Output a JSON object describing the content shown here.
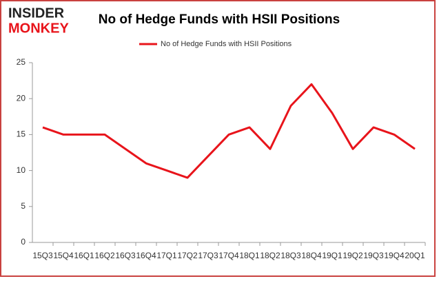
{
  "logo": {
    "top": "INSIDER",
    "bottom": "MONKEY"
  },
  "chart_data": {
    "type": "line",
    "title": "No of Hedge Funds with HSII Positions",
    "categories": [
      "15Q3",
      "15Q4",
      "16Q1",
      "16Q2",
      "16Q3",
      "16Q4",
      "17Q1",
      "17Q2",
      "17Q3",
      "17Q4",
      "18Q1",
      "18Q2",
      "18Q3",
      "18Q4",
      "19Q1",
      "19Q2",
      "19Q3",
      "19Q4",
      "20Q1"
    ],
    "series": [
      {
        "name": "No of Hedge Funds with HSII Positions",
        "color": "#e8141b",
        "values": [
          16,
          15,
          15,
          15,
          13,
          11,
          10,
          9,
          12,
          15,
          16,
          13,
          19,
          22,
          18,
          13,
          16,
          15,
          13
        ]
      }
    ],
    "ylim": [
      0,
      25
    ],
    "yticks": [
      0,
      5,
      10,
      15,
      20,
      25
    ],
    "grid": false,
    "legend": "top"
  }
}
